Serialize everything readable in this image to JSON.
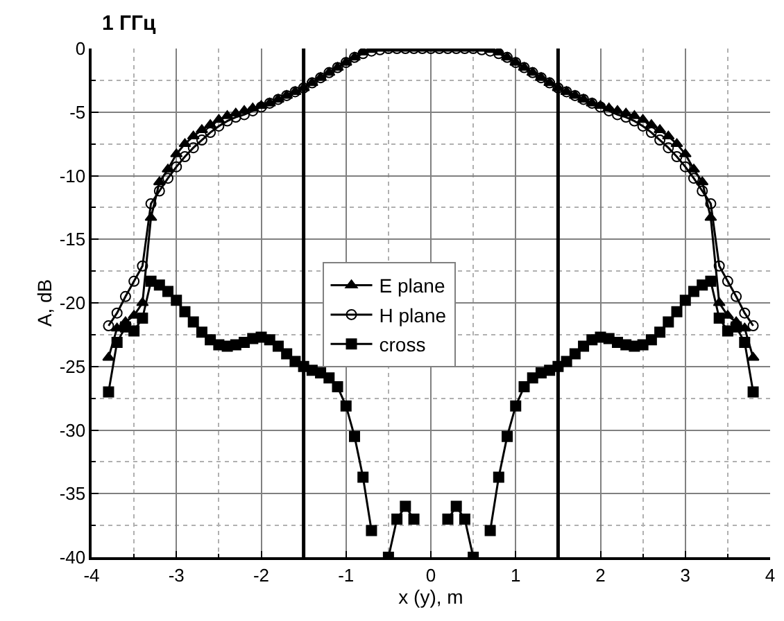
{
  "chart_data": {
    "type": "line",
    "title": "1 ГГц",
    "xlabel": "x (y), m",
    "ylabel": "A, dB",
    "x": [
      -3.8,
      -3.7,
      -3.6,
      -3.5,
      -3.4,
      -3.3,
      -3.2,
      -3.1,
      -3.0,
      -2.9,
      -2.8,
      -2.7,
      -2.6,
      -2.5,
      -2.4,
      -2.3,
      -2.2,
      -2.1,
      -2.0,
      -1.9,
      -1.8,
      -1.7,
      -1.6,
      -1.5,
      -1.4,
      -1.3,
      -1.2,
      -1.1,
      -1.0,
      -0.9,
      -0.8,
      -0.7,
      -0.6,
      -0.5,
      -0.4,
      -0.3,
      -0.2,
      -0.1,
      0.0,
      0.1,
      0.2,
      0.3,
      0.4,
      0.5,
      0.6,
      0.7,
      0.8,
      0.9,
      1.0,
      1.1,
      1.2,
      1.3,
      1.4,
      1.5,
      1.6,
      1.7,
      1.8,
      1.9,
      2.0,
      2.1,
      2.2,
      2.3,
      2.4,
      2.5,
      2.6,
      2.7,
      2.8,
      2.9,
      3.0,
      3.1,
      3.2,
      3.3,
      3.4,
      3.5,
      3.6,
      3.7,
      3.8
    ],
    "series": [
      {
        "name": "E plane",
        "color": "#000000",
        "marker": "triangle",
        "values": [
          -24.3,
          -22,
          -21.5,
          -21,
          -20,
          -13.3,
          -10.5,
          -9.5,
          -8.3,
          -7.5,
          -6.9,
          -6.4,
          -6.0,
          -5.6,
          -5.3,
          -5.1,
          -4.9,
          -4.7,
          -4.5,
          -4.3,
          -4.0,
          -3.7,
          -3.4,
          -3.1,
          -2.7,
          -2.3,
          -1.9,
          -1.5,
          -1.1,
          -0.7,
          -0.3,
          -0.1,
          0,
          0,
          0,
          0,
          0,
          0,
          0,
          0,
          0,
          0,
          0,
          0,
          0,
          -0.1,
          -0.3,
          -0.7,
          -1.1,
          -1.5,
          -1.9,
          -2.3,
          -2.7,
          -3.1,
          -3.4,
          -3.7,
          -4.0,
          -4.3,
          -4.5,
          -4.7,
          -4.9,
          -5.1,
          -5.3,
          -5.6,
          -6.0,
          -6.4,
          -6.9,
          -7.5,
          -8.3,
          -9.5,
          -10.5,
          -13.3,
          -20,
          -21,
          -21.5,
          -22,
          -24.3
        ]
      },
      {
        "name": "H plane",
        "color": "#000000",
        "marker": "circle-open",
        "values": [
          -21.8,
          -20.8,
          -19.5,
          -18.3,
          -17.1,
          -12.2,
          -11.2,
          -10.2,
          -9.3,
          -8.5,
          -7.8,
          -7.2,
          -6.6,
          -6.1,
          -5.7,
          -5.4,
          -5.2,
          -4.9,
          -4.6,
          -4.3,
          -4.0,
          -3.7,
          -3.4,
          -3.1,
          -2.7,
          -2.3,
          -1.9,
          -1.5,
          -1.1,
          -0.7,
          -0.4,
          -0.2,
          -0.1,
          0,
          0,
          0,
          0,
          0,
          0,
          0,
          0,
          0,
          0,
          0,
          -0.1,
          -0.2,
          -0.4,
          -0.7,
          -1.1,
          -1.5,
          -1.9,
          -2.3,
          -2.7,
          -3.1,
          -3.4,
          -3.7,
          -4.0,
          -4.3,
          -4.6,
          -4.9,
          -5.2,
          -5.4,
          -5.7,
          -6.1,
          -6.6,
          -7.2,
          -7.8,
          -8.5,
          -9.3,
          -10.2,
          -11.2,
          -12.2,
          -17.1,
          -18.3,
          -19.5,
          -20.8,
          -21.8
        ]
      },
      {
        "name": "cross",
        "color": "#000000",
        "marker": "square",
        "values": [
          -27,
          -23.1,
          -21.9,
          -22.2,
          -21.2,
          -18.3,
          -18.6,
          -19.1,
          -19.8,
          -20.7,
          -21.5,
          -22.3,
          -22.9,
          -23.3,
          -23.4,
          -23.3,
          -23.1,
          -22.8,
          -22.7,
          -22.9,
          -23.4,
          -24.0,
          -24.6,
          -25.0,
          -25.3,
          -25.5,
          -25.9,
          -26.6,
          -28.1,
          -30.5,
          -33.7,
          -37.9,
          null,
          -40,
          -37,
          -36,
          -37,
          null,
          null,
          null,
          -37,
          -36,
          -37,
          -40,
          null,
          -37.9,
          -33.7,
          -30.5,
          -28.1,
          -26.6,
          -25.9,
          -25.5,
          -25.3,
          -25.0,
          -24.6,
          -24.0,
          -23.4,
          -22.9,
          -22.7,
          -22.8,
          -23.1,
          -23.3,
          -23.4,
          -23.3,
          -22.9,
          -22.3,
          -21.5,
          -20.7,
          -19.8,
          -19.1,
          -18.6,
          -18.3,
          -21.2,
          -22.2,
          -21.9,
          -23.1,
          -27
        ]
      }
    ],
    "xlim": [
      -4,
      4
    ],
    "xticks": [
      -4,
      -3,
      -2,
      -1,
      0,
      1,
      2,
      3,
      4
    ],
    "ylim": [
      -40,
      0
    ],
    "yticks": [
      -40,
      -35,
      -30,
      -25,
      -20,
      -15,
      -10,
      -5,
      0
    ],
    "ref_lines": [
      {
        "axis": "x",
        "value": -1.5,
        "color": "#000000"
      },
      {
        "axis": "x",
        "value": 1.5,
        "color": "#000000"
      }
    ],
    "grid": true,
    "legend": "center",
    "line_style": "solid"
  }
}
